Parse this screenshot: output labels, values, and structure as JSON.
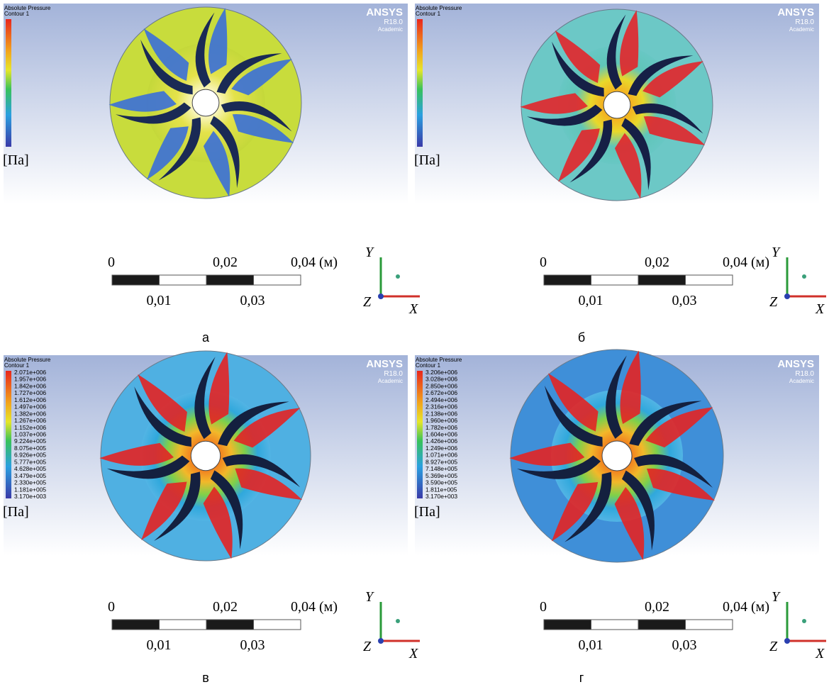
{
  "panels": [
    {
      "caption": "а",
      "legend": {
        "title": "Absolute Pressure",
        "subtitle": "Contour 1",
        "unit": "[Па]"
      },
      "brand": {
        "name": "ANSYS",
        "version": "R18.0",
        "edition": "Academic"
      },
      "scale": {
        "top": [
          "0",
          "0,02",
          "0,04 (м)"
        ],
        "bottom": [
          "0,01",
          "0,03"
        ]
      },
      "axes": [
        "Y",
        "Z",
        "X"
      ]
    },
    {
      "caption": "б",
      "legend": {
        "title": "Absolute Pressure",
        "subtitle": "Contour 1",
        "unit": "[Па]"
      },
      "brand": {
        "name": "ANSYS",
        "version": "R18.0",
        "edition": "Academic"
      },
      "scale": {
        "top": [
          "0",
          "0,02",
          "0,04 (м)"
        ],
        "bottom": [
          "0,01",
          "0,03"
        ]
      },
      "axes": [
        "Y",
        "Z",
        "X"
      ]
    },
    {
      "caption": "в",
      "legend": {
        "title": "Absolute Pressure",
        "subtitle": "Contour 1",
        "unit": "[Па]",
        "values": [
          "2.071e+006",
          "1.957e+006",
          "1.842e+006",
          "1.727e+006",
          "1.612e+006",
          "1.497e+006",
          "1.382e+006",
          "1.267e+006",
          "1.152e+006",
          "1.037e+006",
          "9.224e+005",
          "8.075e+005",
          "6.926e+005",
          "5.777e+005",
          "4.628e+005",
          "3.479e+005",
          "2.330e+005",
          "1.181e+005",
          "3.170e+003"
        ]
      },
      "brand": {
        "name": "ANSYS",
        "version": "R18.0",
        "edition": "Academic"
      },
      "scale": {
        "top": [
          "0",
          "0,02",
          "0,04 (м)"
        ],
        "bottom": [
          "0,01",
          "0,03"
        ]
      },
      "axes": [
        "Y",
        "Z",
        "X"
      ]
    },
    {
      "caption": "г",
      "legend": {
        "title": "Absolute Pressure",
        "subtitle": "Contour 1",
        "unit": "[Па]",
        "values": [
          "3.206e+006",
          "3.028e+006",
          "2.850e+006",
          "2.672e+006",
          "2.494e+006",
          "2.316e+006",
          "2.138e+006",
          "1.960e+006",
          "1.782e+006",
          "1.604e+006",
          "1.426e+006",
          "1.249e+006",
          "1.071e+006",
          "8.927e+005",
          "7.148e+005",
          "5.369e+005",
          "3.590e+005",
          "1.811e+005",
          "3.170e+003"
        ]
      },
      "brand": {
        "name": "ANSYS",
        "version": "R18.0",
        "edition": "Academic"
      },
      "scale": {
        "top": [
          "0",
          "0,02",
          "0,04 (м)"
        ],
        "bottom": [
          "0,01",
          "0,03"
        ]
      },
      "axes": [
        "Y",
        "Z",
        "X"
      ]
    }
  ]
}
